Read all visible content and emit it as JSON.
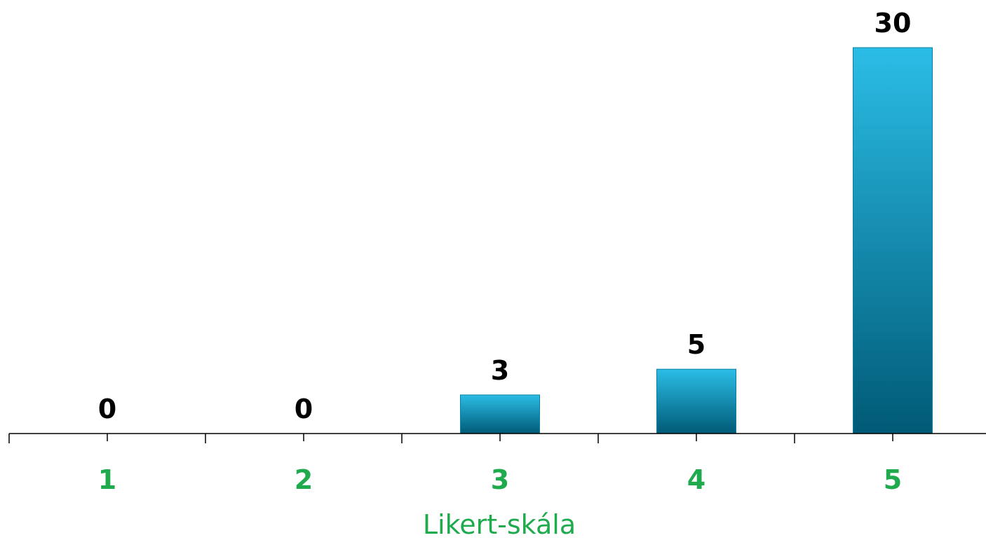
{
  "chart_data": {
    "type": "bar",
    "categories": [
      "1",
      "2",
      "3",
      "4",
      "5"
    ],
    "values": [
      0,
      0,
      3,
      5,
      30
    ],
    "xlabel": "Likert-skála",
    "ylabel": "",
    "ylim": [
      0,
      30
    ],
    "grid": false,
    "data_labels": true,
    "colors": {
      "bar_top": "#2bbde6",
      "bar_bottom": "#005a76",
      "category_text": "#1faa4e",
      "axis_title": "#1faa4e",
      "data_label": "#000000",
      "axis_line": "#000000"
    }
  }
}
